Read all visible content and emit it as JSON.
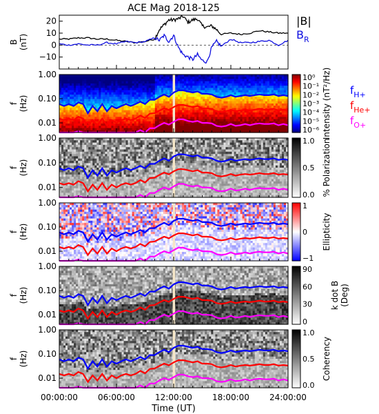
{
  "title": "ACE Mag 2018-125",
  "xlabel": "Time (UT)",
  "x_ticks": [
    "00:00:00",
    "06:00:00",
    "12:00:00",
    "18:00:00",
    "24:00:00"
  ],
  "x_range_hours": [
    0,
    24
  ],
  "data_gap_hours": [
    11.9,
    12.15
  ],
  "colors": {
    "B_total": "#000000",
    "B_R": "#1010e0",
    "f_H": "#0000ff",
    "f_He": "#ff0000",
    "f_O": "#ff00ff",
    "gap": "#f5e6c8"
  },
  "chart_data": [
    {
      "type": "line",
      "panel": "B",
      "ylabel_1": "B",
      "ylabel_2": "(nT)",
      "ylim": [
        -20,
        25
      ],
      "y_ticks": [
        "20",
        "10",
        "0",
        "−10"
      ],
      "y_tick_values": [
        20,
        10,
        0,
        -10
      ],
      "legend": [
        {
          "label": "|B|",
          "color": "#000000"
        },
        {
          "label": "B",
          "sub": "R",
          "color": "#1010e0"
        }
      ],
      "series": [
        {
          "name": "|B|",
          "x": [
            0,
            1,
            2,
            3,
            4,
            5,
            6,
            7,
            8,
            9,
            10,
            10.5,
            11,
            11.5,
            12,
            12.5,
            13,
            13.5,
            14,
            14.5,
            15,
            15.5,
            16,
            16.5,
            17,
            18,
            19,
            20,
            21,
            22,
            23,
            24
          ],
          "values": [
            5,
            5,
            6,
            6,
            5,
            5,
            4,
            3,
            2,
            3,
            5,
            13,
            17,
            21,
            21,
            22,
            24,
            19,
            21,
            22,
            16,
            15,
            16,
            13,
            9,
            10,
            9,
            10,
            12,
            11,
            10,
            10
          ]
        },
        {
          "name": "B_R",
          "x": [
            0,
            1,
            2,
            3,
            4,
            5,
            6,
            7,
            8,
            9,
            10,
            10.5,
            11,
            11.5,
            12,
            12.5,
            13,
            13.5,
            14,
            14.5,
            15,
            15.5,
            16,
            16.5,
            17,
            18,
            19,
            20,
            21,
            22,
            23,
            24
          ],
          "values": [
            1,
            0,
            1,
            0,
            0,
            2,
            1,
            3,
            2,
            3,
            6,
            4,
            8,
            3,
            8,
            -2,
            -8,
            -10,
            -12,
            -8,
            -13,
            -14,
            -2,
            3,
            -1,
            5,
            2,
            2,
            3,
            4,
            0,
            4
          ]
        }
      ]
    },
    {
      "type": "heatmap",
      "panel": "intensity",
      "ylabel_1": "f",
      "ylabel_2": "(Hz)",
      "ylim": [
        0.004,
        1.0
      ],
      "y_scale": "log",
      "y_ticks": [
        "1.00",
        "0.10",
        "0.01"
      ],
      "y_tick_values": [
        1.0,
        0.1,
        0.01
      ],
      "colorbar_label": "Intensity (nT²/Hz)",
      "colorbar_ticks": [
        "10⁰",
        "10⁻¹",
        "10⁻²",
        "10⁻³",
        "10⁻⁴",
        "10⁻⁵",
        "10⁻⁶"
      ],
      "colorbar_range": [
        -6,
        0
      ],
      "colormap": "jet",
      "legend": [
        {
          "label": "f",
          "sub": "H+",
          "color": "#0000ff"
        },
        {
          "label": "f",
          "sub": "He+",
          "color": "#ff0000"
        },
        {
          "label": "f",
          "sub": "O+",
          "color": "#ff00ff"
        }
      ]
    },
    {
      "type": "heatmap",
      "panel": "polarization",
      "ylabel_1": "f",
      "ylabel_2": "(Hz)",
      "ylim": [
        0.004,
        1.0
      ],
      "y_scale": "log",
      "y_ticks": [
        "1.00",
        "0.10",
        "0.01"
      ],
      "y_tick_values": [
        1.0,
        0.1,
        0.01
      ],
      "colorbar_label": "% Polarization",
      "colorbar_ticks": [
        "1.0",
        "0.5",
        "0.0"
      ],
      "colorbar_range": [
        0,
        1
      ],
      "colormap": "gray"
    },
    {
      "type": "heatmap",
      "panel": "ellipticity",
      "ylabel_1": "f",
      "ylabel_2": "(Hz)",
      "ylim": [
        0.004,
        1.0
      ],
      "y_scale": "log",
      "y_ticks": [
        "1.00",
        "0.10",
        "0.01"
      ],
      "y_tick_values": [
        1.0,
        0.1,
        0.01
      ],
      "colorbar_label": "Ellipticity",
      "colorbar_ticks": [
        "1",
        "0",
        "−1"
      ],
      "colorbar_range": [
        -1,
        1
      ],
      "colormap": "bwr"
    },
    {
      "type": "heatmap",
      "panel": "kdotb",
      "ylabel_1": "f",
      "ylabel_2": "(Hz)",
      "ylim": [
        0.004,
        1.0
      ],
      "y_scale": "log",
      "y_ticks": [
        "1.00",
        "0.10",
        "0.01"
      ],
      "y_tick_values": [
        1.0,
        0.1,
        0.01
      ],
      "colorbar_label": "k dot B",
      "colorbar_label_2": "(Deg)",
      "colorbar_ticks": [
        "90",
        "60",
        "30",
        "0"
      ],
      "colorbar_range": [
        0,
        90
      ],
      "colormap": "gray"
    },
    {
      "type": "heatmap",
      "panel": "coherency",
      "ylabel_1": "f",
      "ylabel_2": "(Hz)",
      "ylim": [
        0.004,
        1.0
      ],
      "y_scale": "log",
      "y_ticks": [
        "1.00",
        "0.10",
        "0.01"
      ],
      "y_tick_values": [
        1.0,
        0.1,
        0.01
      ],
      "colorbar_label": "Coherency",
      "colorbar_ticks": [
        "1.0",
        "0.5",
        "0.0"
      ],
      "colorbar_range": [
        0,
        1
      ],
      "colormap": "gray"
    }
  ],
  "gyrofrequency_lines": {
    "x": [
      0,
      0.5,
      1,
      1.5,
      2,
      2.5,
      3,
      3.5,
      4,
      4.5,
      5,
      5.5,
      6,
      6.5,
      7,
      7.5,
      8,
      8.5,
      9,
      9.5,
      10,
      10.5,
      11,
      11.5,
      12,
      12.5,
      13,
      13.5,
      14,
      14.5,
      15,
      15.5,
      16,
      16.5,
      17,
      17.5,
      18,
      18.5,
      19,
      19.5,
      20,
      20.5,
      21,
      21.5,
      22,
      22.5,
      23,
      23.5,
      24
    ],
    "f_H": [
      0.06,
      0.05,
      0.06,
      0.05,
      0.07,
      0.06,
      0.025,
      0.05,
      0.03,
      0.06,
      0.03,
      0.05,
      0.04,
      0.05,
      0.06,
      0.05,
      0.06,
      0.075,
      0.06,
      0.09,
      0.09,
      0.12,
      0.15,
      0.12,
      0.18,
      0.22,
      0.22,
      0.2,
      0.18,
      0.2,
      0.16,
      0.16,
      0.15,
      0.12,
      0.11,
      0.12,
      0.14,
      0.12,
      0.13,
      0.14,
      0.13,
      0.14,
      0.15,
      0.14,
      0.14,
      0.15,
      0.13,
      0.14,
      0.13
    ],
    "f_He": [
      0.015,
      0.013,
      0.015,
      0.013,
      0.018,
      0.015,
      0.007,
      0.013,
      0.008,
      0.015,
      0.008,
      0.013,
      0.01,
      0.013,
      0.015,
      0.013,
      0.015,
      0.02,
      0.016,
      0.024,
      0.025,
      0.032,
      0.04,
      0.034,
      0.045,
      0.055,
      0.055,
      0.05,
      0.045,
      0.05,
      0.04,
      0.04,
      0.038,
      0.03,
      0.028,
      0.03,
      0.035,
      0.03,
      0.033,
      0.035,
      0.033,
      0.035,
      0.038,
      0.035,
      0.035,
      0.038,
      0.033,
      0.035,
      0.033
    ],
    "f_O": [
      0.004,
      0.0035,
      0.004,
      0.0035,
      0.0045,
      0.004,
      0.0025,
      0.0035,
      0.003,
      0.004,
      0.003,
      0.0035,
      0.003,
      0.0035,
      0.004,
      0.0035,
      0.004,
      0.005,
      0.004,
      0.006,
      0.006,
      0.008,
      0.01,
      0.0085,
      0.011,
      0.014,
      0.014,
      0.012,
      0.011,
      0.012,
      0.01,
      0.01,
      0.0095,
      0.0075,
      0.007,
      0.0075,
      0.009,
      0.0075,
      0.008,
      0.009,
      0.008,
      0.009,
      0.0095,
      0.009,
      0.009,
      0.0095,
      0.008,
      0.009,
      0.008
    ]
  }
}
